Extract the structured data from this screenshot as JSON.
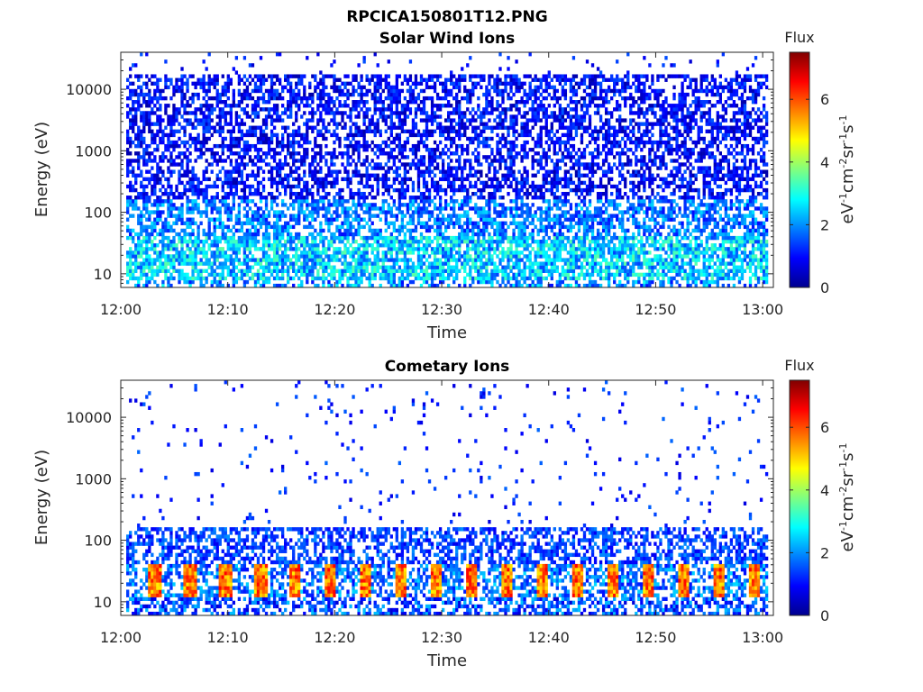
{
  "figure_title": "RPCICA150801T12.PNG",
  "chart_data": [
    {
      "type": "heatmap",
      "title": "Solar Wind Ions",
      "xlabel": "Time",
      "ylabel": "Energy (eV)",
      "x_ticks": [
        "12:00",
        "12:10",
        "12:20",
        "12:30",
        "12:40",
        "12:50",
        "13:00"
      ],
      "x_range": [
        "12:00",
        "13:01"
      ],
      "y_scale": "log",
      "y_ticks": [
        "10",
        "100",
        "1000",
        "10000"
      ],
      "y_range": [
        6,
        40000
      ],
      "colorbar": {
        "label_title": "Flux",
        "unit_label": "eV-1cm-2sr-1s-1",
        "ticks": [
          "0",
          "2",
          "4",
          "6"
        ],
        "range": [
          0,
          7.5
        ],
        "colormap": "jet"
      },
      "description_values": {
        "high_energy_flux": [
          0.5,
          1.5
        ],
        "low_energy_flux": [
          1.5,
          3.5
        ]
      }
    },
    {
      "type": "heatmap",
      "title": "Cometary Ions",
      "xlabel": "Time",
      "ylabel": "Energy (eV)",
      "x_ticks": [
        "12:00",
        "12:10",
        "12:20",
        "12:30",
        "12:40",
        "12:50",
        "13:00"
      ],
      "x_range": [
        "12:00",
        "13:01"
      ],
      "y_scale": "log",
      "y_ticks": [
        "10",
        "100",
        "1000",
        "10000"
      ],
      "y_range": [
        6,
        40000
      ],
      "colorbar": {
        "label_title": "Flux",
        "unit_label": "eV-1cm-2sr-1s-1",
        "ticks": [
          "0",
          "2",
          "4",
          "6"
        ],
        "range": [
          0,
          7.5
        ],
        "colormap": "jet"
      },
      "periodic_peak_energy_range": [
        12,
        45
      ],
      "periodic_peak_flux": 6.0
    }
  ]
}
